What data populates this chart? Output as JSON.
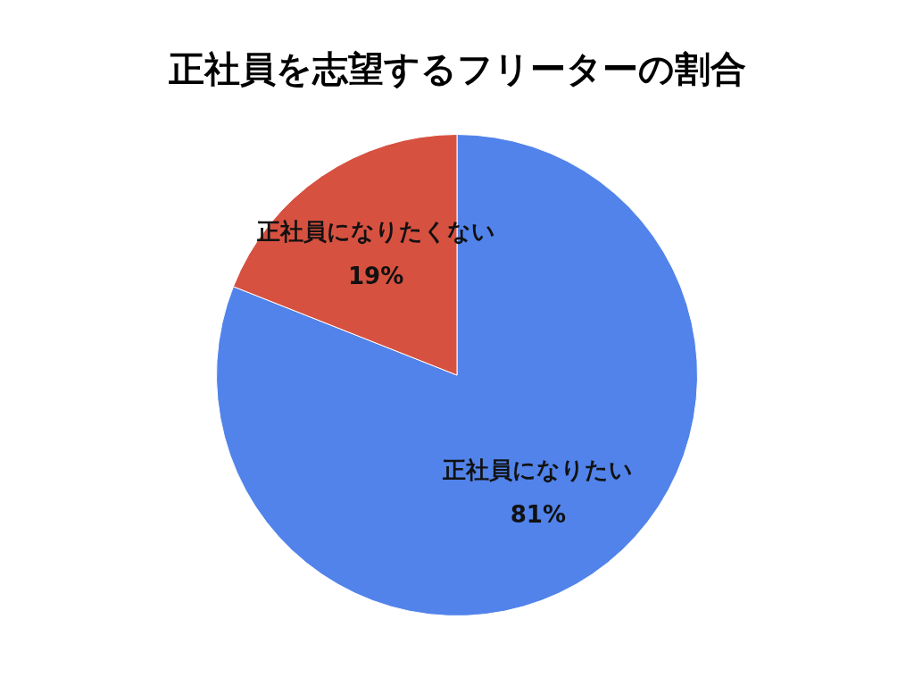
{
  "chart_data": {
    "type": "pie",
    "title": "正社員を志望するフリーターの割合",
    "categories": [
      "正社員になりたい",
      "正社員になりたくない"
    ],
    "values": [
      81,
      19
    ],
    "colors": [
      "#5183ea",
      "#d75140"
    ],
    "value_labels": [
      "81%",
      "19%"
    ]
  }
}
